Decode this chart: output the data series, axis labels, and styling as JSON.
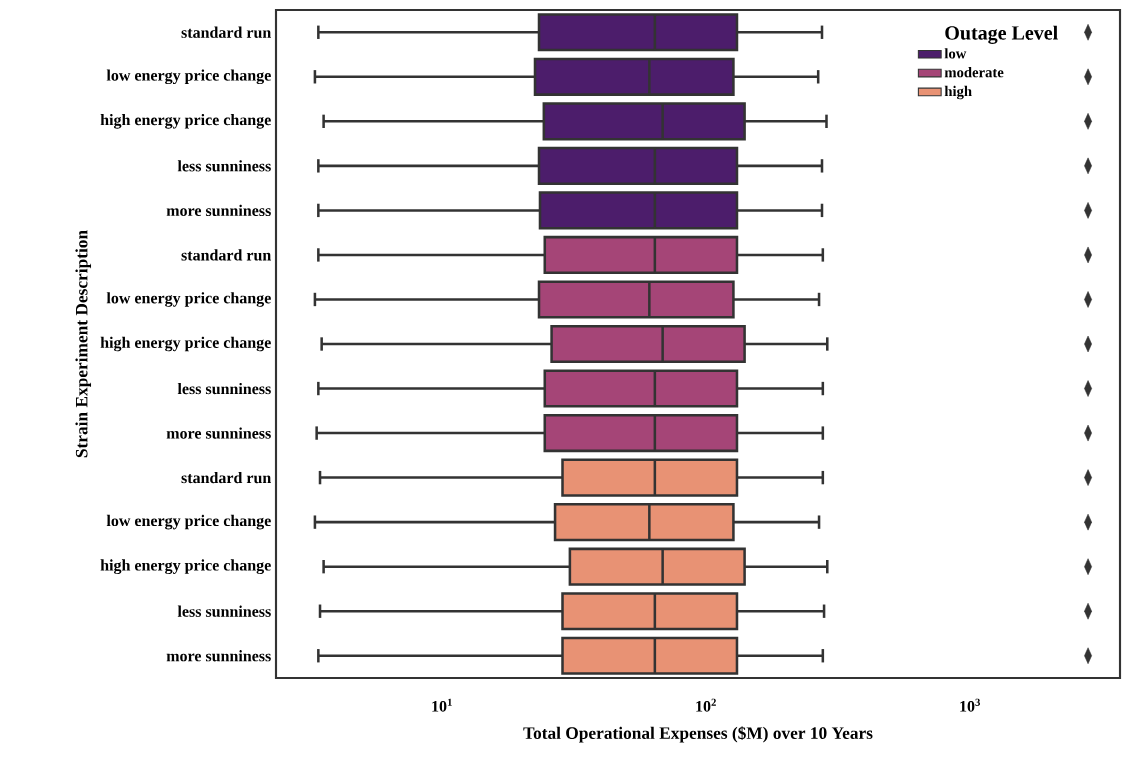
{
  "chart_data": {
    "type": "box",
    "orientation": "horizontal",
    "log": "x",
    "xlabel": "Total Operational Expenses ($M) over 10 Years",
    "ylabel": "Strain Experiment Description",
    "legend_title": "Outage Level",
    "legend": "top right",
    "marker": "diamond",
    "categories": [
      "standard run",
      "low energy price change",
      "high energy price change",
      "less sunniness",
      "more sunniness",
      "standard run",
      "low energy price change",
      "high energy price change",
      "less sunniness",
      "more sunniness",
      "standard run",
      "low energy price change",
      "high energy price change",
      "less sunniness",
      "more sunniness"
    ],
    "xlim": [
      2.35,
      3700
    ],
    "xticks": [
      {
        "value": 10,
        "label": "10$^{1}$"
      },
      {
        "value": 100,
        "label": "10$^{2}$"
      },
      {
        "value": 1000,
        "label": "10$^{3}$"
      }
    ],
    "series": [
      {
        "name": "low",
        "color": "#4c1d6b",
        "boxes": [
          {
            "low": 3.4,
            "q1": 23.3,
            "median": 64,
            "q3": 131,
            "high": 275,
            "outliers": [
              2800
            ]
          },
          {
            "low": 3.3,
            "q1": 22.5,
            "median": 61,
            "q3": 127,
            "high": 266,
            "outliers": [
              2800
            ]
          },
          {
            "low": 3.56,
            "q1": 24.3,
            "median": 68.5,
            "q3": 140,
            "high": 286,
            "outliers": [
              2800
            ]
          },
          {
            "low": 3.4,
            "q1": 23.3,
            "median": 64,
            "q3": 131,
            "high": 275,
            "outliers": [
              2800
            ]
          },
          {
            "low": 3.4,
            "q1": 23.5,
            "median": 64,
            "q3": 131,
            "high": 275,
            "outliers": [
              2800
            ]
          },
          null,
          null,
          null,
          null,
          null,
          null,
          null,
          null,
          null,
          null
        ]
      },
      {
        "name": "moderate",
        "color": "#a54577",
        "boxes": [
          null,
          null,
          null,
          null,
          null,
          {
            "low": 3.4,
            "q1": 24.5,
            "median": 64,
            "q3": 131,
            "high": 277,
            "outliers": [
              2800
            ]
          },
          {
            "low": 3.3,
            "q1": 23.3,
            "median": 61,
            "q3": 127,
            "high": 268,
            "outliers": [
              2800
            ]
          },
          {
            "low": 3.5,
            "q1": 26,
            "median": 68.5,
            "q3": 140,
            "high": 288,
            "outliers": [
              2800
            ]
          },
          {
            "low": 3.4,
            "q1": 24.5,
            "median": 64,
            "q3": 131,
            "high": 277,
            "outliers": [
              2800
            ]
          },
          {
            "low": 3.35,
            "q1": 24.5,
            "median": 64,
            "q3": 131,
            "high": 277,
            "outliers": [
              2800
            ]
          },
          null,
          null,
          null,
          null,
          null
        ]
      },
      {
        "name": "high",
        "color": "#e89274",
        "boxes": [
          null,
          null,
          null,
          null,
          null,
          null,
          null,
          null,
          null,
          null,
          {
            "low": 3.45,
            "q1": 28.6,
            "median": 64,
            "q3": 131,
            "high": 277,
            "outliers": [
              2800
            ]
          },
          {
            "low": 3.3,
            "q1": 26.8,
            "median": 61,
            "q3": 127,
            "high": 268,
            "outliers": [
              2800
            ]
          },
          {
            "low": 3.56,
            "q1": 30.5,
            "median": 68.5,
            "q3": 140,
            "high": 288,
            "outliers": [
              2800
            ]
          },
          {
            "low": 3.45,
            "q1": 28.6,
            "median": 64,
            "q3": 131,
            "high": 280,
            "outliers": [
              2800
            ]
          },
          {
            "low": 3.4,
            "q1": 28.6,
            "median": 64,
            "q3": 131,
            "high": 277,
            "outliers": [
              2800
            ]
          }
        ]
      }
    ]
  }
}
